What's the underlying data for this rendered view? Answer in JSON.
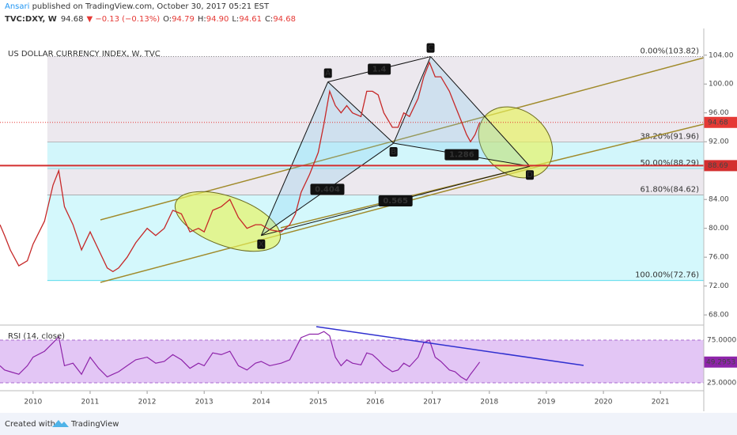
{
  "header": {
    "author": "Ansari",
    "published": " published on TradingView.com, October 30, 2017 05:21 EST",
    "symbol": "TVC:DXY, W",
    "last": "94.68",
    "change": "▼ −0.13 (−0.13%)",
    "ohlc": [
      [
        "O:",
        "94.79"
      ],
      [
        "H:",
        "94.90"
      ],
      [
        "L:",
        "94.61"
      ],
      [
        "C:",
        "94.68"
      ]
    ]
  },
  "chart_data": {
    "type": "line",
    "title": "US DOLLAR CURRENCY INDEX, W, TVC",
    "color": "#c62828",
    "x": [
      2009.42,
      2009.5,
      2009.6,
      2009.75,
      2009.9,
      2010.0,
      2010.2,
      2010.35,
      2010.45,
      2010.55,
      2010.7,
      2010.85,
      2011.0,
      2011.15,
      2011.3,
      2011.4,
      2011.5,
      2011.65,
      2011.8,
      2012.0,
      2012.15,
      2012.3,
      2012.45,
      2012.6,
      2012.75,
      2012.9,
      2013.0,
      2013.15,
      2013.3,
      2013.45,
      2013.6,
      2013.75,
      2013.9,
      2014.0,
      2014.15,
      2014.35,
      2014.5,
      2014.6,
      2014.7,
      2014.85,
      2015.0,
      2015.1,
      2015.2,
      2015.3,
      2015.4,
      2015.5,
      2015.6,
      2015.75,
      2015.85,
      2015.95,
      2016.05,
      2016.15,
      2016.3,
      2016.4,
      2016.5,
      2016.6,
      2016.75,
      2016.85,
      2016.95,
      2017.05,
      2017.15,
      2017.3,
      2017.4,
      2017.5,
      2017.6,
      2017.67,
      2017.75,
      2017.83
    ],
    "values": [
      80.5,
      79,
      77,
      74.8,
      75.5,
      77.8,
      81,
      86,
      88,
      83,
      80.5,
      77,
      79.5,
      77,
      74.5,
      74,
      74.5,
      76,
      78,
      80,
      79,
      80,
      82.5,
      82,
      79.5,
      80,
      79.5,
      82.5,
      83,
      84,
      81.5,
      80,
      80.5,
      80.5,
      79.8,
      79.5,
      80.5,
      82,
      85,
      87.5,
      90.5,
      94.5,
      99,
      97,
      96,
      97,
      96,
      95.5,
      99,
      99,
      98.5,
      96,
      94,
      94,
      96,
      95.5,
      98,
      101,
      103,
      101,
      101,
      99,
      97,
      95,
      93,
      92,
      93,
      94.68
    ],
    "xlim": [
      2009.42,
      2021.76
    ],
    "xticks": [
      2010,
      2011,
      2012,
      2013,
      2014,
      2015,
      2016,
      2017,
      2018,
      2019,
      2020,
      2021
    ],
    "ylim": [
      66.7,
      107.7
    ],
    "yticks": [
      {
        "value": 104,
        "label": "104.00"
      },
      {
        "value": 100,
        "label": "100.00"
      },
      {
        "value": 96,
        "label": "96.00"
      },
      {
        "value": 92,
        "label": "92.00"
      },
      {
        "value": 84,
        "label": "84.00"
      },
      {
        "value": 80,
        "label": "80.00"
      },
      {
        "value": 76,
        "label": "76.00"
      },
      {
        "value": 72,
        "label": "72.00"
      },
      {
        "value": 68,
        "label": "68.00"
      }
    ],
    "price_line": 94.68,
    "level": 88.69,
    "fib": [
      {
        "label": "0.00%(103.82)",
        "value": 103.82,
        "color": "#555"
      },
      {
        "label": "38.20%(91.96)",
        "value": 91.96,
        "color": "#999"
      },
      {
        "label": "50.00%(88.29)",
        "value": 88.29,
        "color": "#5fc9d8"
      },
      {
        "label": "61.80%(84.62)",
        "value": 84.62,
        "color": "#999"
      },
      {
        "label": "100.00%(72.76)",
        "value": 72.76,
        "color": "#2ed0e6"
      }
    ],
    "fib_fills": [
      "#ece8ee",
      "#d2f6fb",
      "#ece8ee",
      "#d4f8fc"
    ],
    "pattern": [
      {
        "label": "X",
        "x": 2014.0,
        "value": 79.0
      },
      {
        "label": "A",
        "x": 2015.17,
        "value": 100.3
      },
      {
        "label": "B",
        "x": 2016.32,
        "value": 91.8
      },
      {
        "label": "C",
        "x": 2016.97,
        "value": 103.8
      },
      {
        "label": "D",
        "x": 2018.71,
        "value": 88.6
      }
    ],
    "ratios": [
      1.4,
      0.404,
      0.565,
      1.286
    ],
    "rsi": {
      "label": "RSI (14, close)",
      "color": "#8e24aa",
      "values": [
        45,
        40,
        38,
        35,
        45,
        55,
        62,
        72,
        79,
        45,
        48,
        35,
        55,
        42,
        32,
        35,
        38,
        45,
        52,
        55,
        48,
        50,
        58,
        52,
        42,
        48,
        45,
        60,
        58,
        62,
        45,
        40,
        48,
        50,
        45,
        48,
        52,
        65,
        78,
        82,
        82,
        85,
        80,
        55,
        45,
        52,
        48,
        46,
        60,
        58,
        52,
        45,
        38,
        40,
        48,
        44,
        55,
        72,
        75,
        55,
        50,
        40,
        38,
        32,
        28,
        35,
        42,
        49.2953
      ],
      "ylim": [
        17.6,
        91.7
      ],
      "yticks": [
        {
          "value": 75,
          "label": "75.0000"
        },
        {
          "value": 25,
          "label": "25.0000"
        }
      ],
      "last": 49.2953
    }
  },
  "footer": {
    "created": "Created with",
    "brand": "TradingView"
  }
}
